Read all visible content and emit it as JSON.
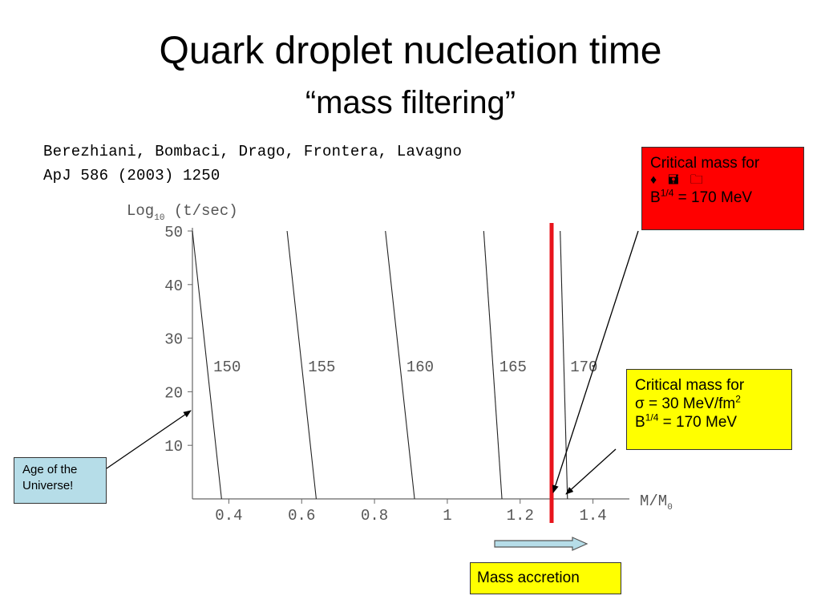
{
  "slide": {
    "title": "Quark droplet nucleation time",
    "subtitle": "“mass filtering”",
    "citation_authors": "Berezhiani, Bombaci, Drago, Frontera, Lavagno",
    "citation_ref": "ApJ 586 (2003) 1250"
  },
  "red_box": {
    "line1": "Critical mass for",
    "symbols": [
      "♦",
      "🖬",
      "🗀"
    ],
    "b_label": "B",
    "b_exp": "1/4",
    "b_value": " = 170 MeV",
    "color": "#ff0000"
  },
  "yellow_box": {
    "line1": "Critical mass for",
    "sigma_text": "σ = 30 MeV/fm",
    "sigma_exp": "2",
    "b_label": "B",
    "b_exp": "1/4",
    "b_value": " = 170 MeV",
    "color": "#ffff00"
  },
  "age_box": {
    "line1": "Age of the",
    "line2": "Universe!",
    "color": "#b6dde8"
  },
  "mass_accretion": {
    "label": "Mass accretion",
    "color": "#ffff00"
  },
  "chart_data": {
    "type": "line",
    "ylabel_main": "Log",
    "ylabel_sub": "10",
    "ylabel_rest": " (t/sec)",
    "xlabel_main": "M/M",
    "xlabel_sub": "0",
    "xlim": [
      0.3,
      1.5
    ],
    "ylim": [
      0,
      50
    ],
    "xticks": [
      0.4,
      0.6,
      0.8,
      1,
      1.2,
      1.4
    ],
    "xtick_labels": [
      "0.4",
      "0.6",
      "0.8",
      "1",
      "1.2",
      "1.4"
    ],
    "yticks": [
      10,
      20,
      30,
      40,
      50
    ],
    "ytick_labels": [
      "10",
      "20",
      "30",
      "40",
      "50"
    ],
    "series": [
      {
        "name": "150",
        "x": [
          0.3,
          0.38
        ],
        "y": [
          50,
          0
        ]
      },
      {
        "name": "155",
        "x": [
          0.56,
          0.64
        ],
        "y": [
          50,
          0
        ]
      },
      {
        "name": "160",
        "x": [
          0.83,
          0.91
        ],
        "y": [
          50,
          0
        ]
      },
      {
        "name": "165",
        "x": [
          1.1,
          1.15
        ],
        "y": [
          50,
          0
        ]
      },
      {
        "name": "170",
        "x": [
          1.31,
          1.33
        ],
        "y": [
          50,
          0
        ]
      }
    ],
    "curve_label_y": 25,
    "critical_line": {
      "x": 1.3,
      "color": "#e8141c"
    },
    "grid": false
  }
}
